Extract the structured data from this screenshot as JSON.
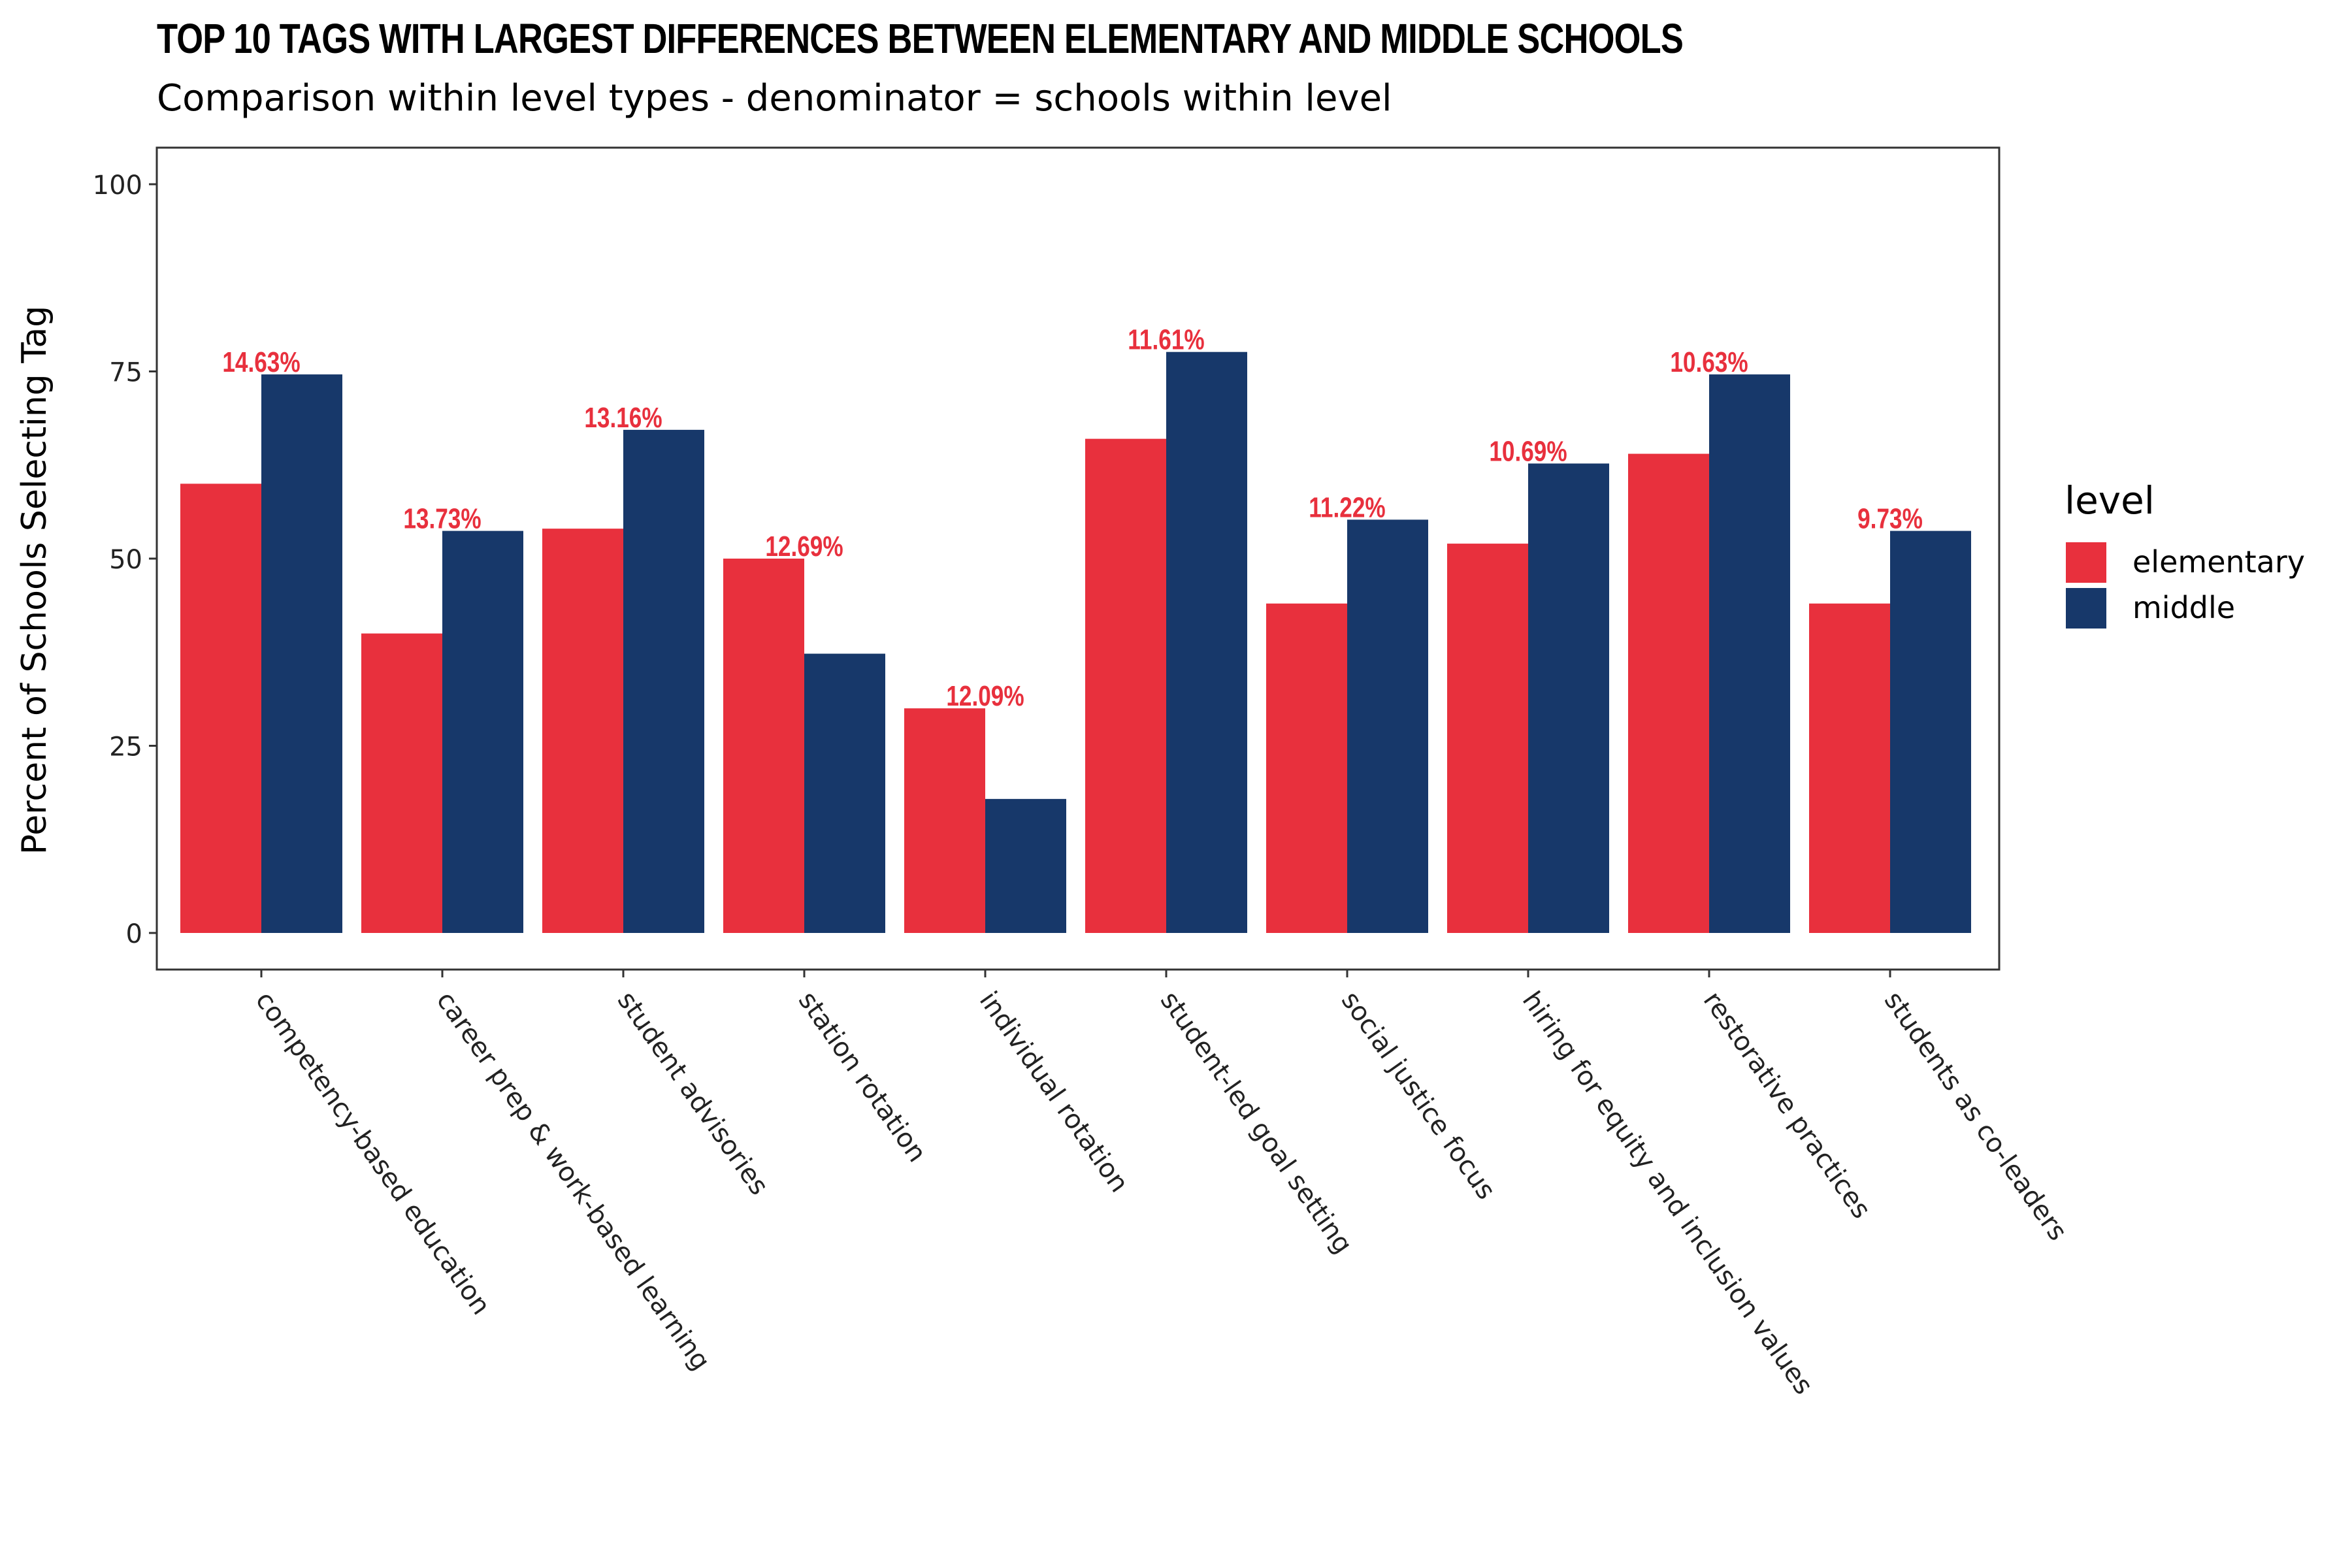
{
  "chart_data": {
    "type": "bar",
    "title": "TOP 10 TAGS WITH LARGEST DIFFERENCES BETWEEN ELEMENTARY AND MIDDLE SCHOOLS",
    "subtitle": "Comparison within level types - denominator = schools within level",
    "xlabel": "",
    "ylabel": "Percent of Schools Selecting Tag",
    "ylim": [
      0,
      100
    ],
    "yticks": [
      "0",
      "25",
      "50",
      "75",
      "100"
    ],
    "grid": false,
    "legend_position": "right",
    "legend_title": "level",
    "categories": [
      "competency-based education",
      "career prep & work-based learning",
      "student advisories",
      "station rotation",
      "individual rotation",
      "student-led goal setting",
      "social justice focus",
      "hiring for equity and inclusion values",
      "restorative practices",
      "students as co-leaders"
    ],
    "series": [
      {
        "name": "elementary",
        "color": "#e8303d",
        "values": [
          60,
          40,
          54,
          50,
          30,
          66,
          44,
          52,
          64,
          44
        ]
      },
      {
        "name": "middle",
        "color": "#17386a",
        "values": [
          74.6,
          53.7,
          67.2,
          37.3,
          17.9,
          77.6,
          55.2,
          62.7,
          74.6,
          53.7
        ]
      }
    ],
    "annotations": [
      "14.63%",
      "13.73%",
      "13.16%",
      "12.69%",
      "12.09%",
      "11.61%",
      "11.22%",
      "10.69%",
      "10.63%",
      "9.73%"
    ],
    "annotation_color": "#e8303d"
  }
}
